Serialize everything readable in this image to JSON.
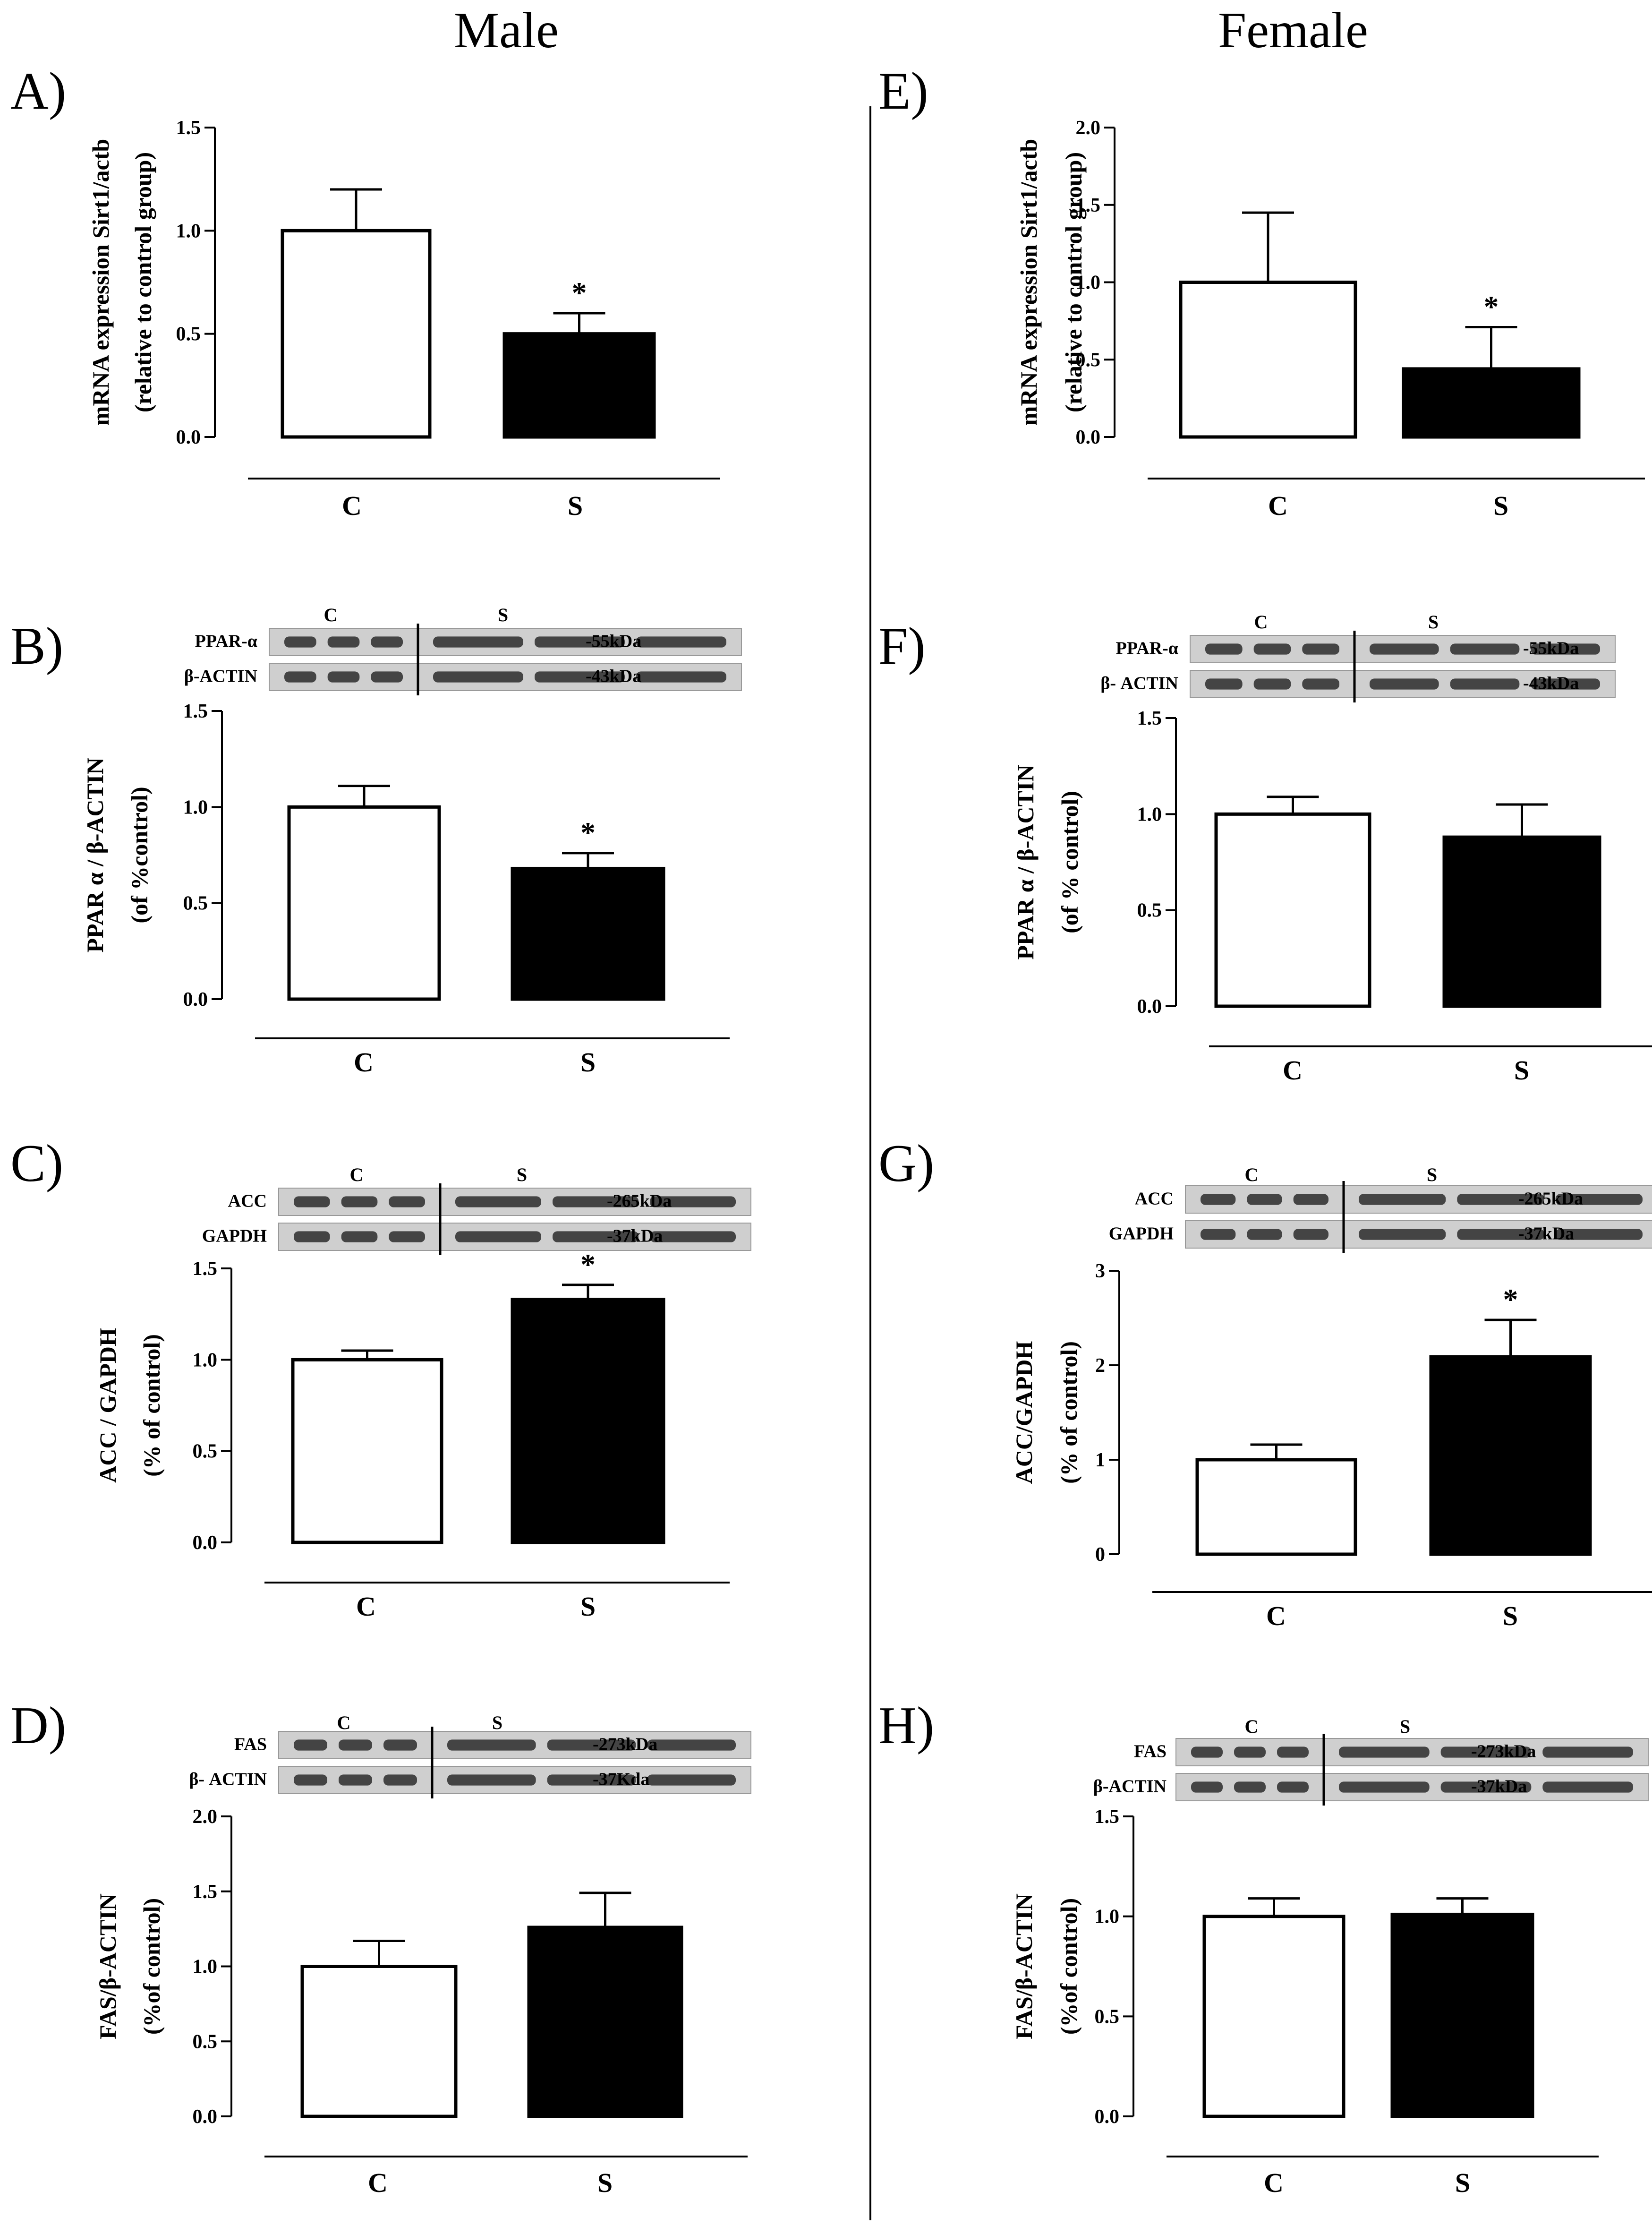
{
  "headings": {
    "male": "Male",
    "female": "Female"
  },
  "chart_data": [
    {
      "panel": "A)",
      "type": "bar",
      "column": "male",
      "categories": [
        "C",
        "S"
      ],
      "values": [
        1.0,
        0.5
      ],
      "errors": [
        0.2,
        0.1
      ],
      "significance": [
        "",
        "*"
      ],
      "ylabel": [
        "mRNA expression Sirt1/actb",
        "(relative to control group)"
      ],
      "ylim": [
        0,
        1.5
      ],
      "yticks": [
        "0.0",
        "0.5",
        "1.0",
        "1.5"
      ],
      "blot": null
    },
    {
      "panel": "B)",
      "type": "bar",
      "column": "male",
      "categories": [
        "C",
        "S"
      ],
      "values": [
        1.0,
        0.68
      ],
      "errors": [
        0.11,
        0.08
      ],
      "significance": [
        "",
        "*"
      ],
      "ylabel": [
        "PPAR α / β-ACTIN",
        "(of %control)"
      ],
      "ylim": [
        0,
        1.5
      ],
      "yticks": [
        "0.0",
        "0.5",
        "1.0",
        "1.5"
      ],
      "blot": {
        "groups": [
          "C",
          "S"
        ],
        "rows": [
          {
            "label": "PPAR-α",
            "kda": "-55kDa"
          },
          {
            "label": "β-ACTIN",
            "kda": "-43kDa"
          }
        ]
      }
    },
    {
      "panel": "C)",
      "type": "bar",
      "column": "male",
      "categories": [
        "C",
        "S"
      ],
      "values": [
        1.0,
        1.33
      ],
      "errors": [
        0.05,
        0.08
      ],
      "significance": [
        "",
        "*"
      ],
      "ylabel": [
        "ACC / GAPDH",
        "(% of control)"
      ],
      "ylim": [
        0,
        1.5
      ],
      "yticks": [
        "0.0",
        "0.5",
        "1.0",
        "1.5"
      ],
      "blot": {
        "groups": [
          "C",
          "S"
        ],
        "rows": [
          {
            "label": "ACC",
            "kda": "-265kDa"
          },
          {
            "label": "GAPDH",
            "kda": "-37kDa"
          }
        ]
      }
    },
    {
      "panel": "D)",
      "type": "bar",
      "column": "male",
      "categories": [
        "C",
        "S"
      ],
      "values": [
        1.0,
        1.26
      ],
      "errors": [
        0.17,
        0.23
      ],
      "significance": [
        "",
        ""
      ],
      "ylabel": [
        "FAS/β-ACTIN",
        "(%of control)"
      ],
      "ylim": [
        0,
        2.0
      ],
      "yticks": [
        "0.0",
        "0.5",
        "1.0",
        "1.5",
        "2.0"
      ],
      "blot": {
        "groups": [
          "C",
          "S"
        ],
        "rows": [
          {
            "label": "FAS",
            "kda": "-273kDa"
          },
          {
            "label": "β- ACTIN",
            "kda": "-37Kda"
          }
        ]
      }
    },
    {
      "panel": "E)",
      "type": "bar",
      "column": "female",
      "categories": [
        "C",
        "S"
      ],
      "values": [
        1.0,
        0.44
      ],
      "errors": [
        0.45,
        0.27
      ],
      "significance": [
        "",
        "*"
      ],
      "ylabel": [
        "mRNA expression Sirt1/actb",
        "(relative to control group)"
      ],
      "ylim": [
        0,
        2.0
      ],
      "yticks": [
        "0.0",
        "0.5",
        "1.0",
        "1.5",
        "2.0"
      ],
      "blot": null
    },
    {
      "panel": "F)",
      "type": "bar",
      "column": "female",
      "categories": [
        "C",
        "S"
      ],
      "values": [
        1.0,
        0.88
      ],
      "errors": [
        0.09,
        0.17
      ],
      "significance": [
        "",
        ""
      ],
      "ylabel": [
        "PPAR α / β-ACTIN",
        "(of % control)"
      ],
      "ylim": [
        0,
        1.5
      ],
      "yticks": [
        "0.0",
        "0.5",
        "1.0",
        "1.5"
      ],
      "blot": {
        "groups": [
          "C",
          "S"
        ],
        "rows": [
          {
            "label": "PPAR-α",
            "kda": "-55kDa"
          },
          {
            "label": "β- ACTIN",
            "kda": "-43kDa"
          }
        ]
      }
    },
    {
      "panel": "G)",
      "type": "bar",
      "column": "female",
      "categories": [
        "C",
        "S"
      ],
      "values": [
        1.0,
        2.09
      ],
      "errors": [
        0.16,
        0.39
      ],
      "significance": [
        "",
        "*"
      ],
      "ylabel": [
        "ACC/GAPDH",
        "(% of control)"
      ],
      "ylim": [
        0,
        3
      ],
      "yticks": [
        "0",
        "1",
        "2",
        "3"
      ],
      "blot": {
        "groups": [
          "C",
          "S"
        ],
        "rows": [
          {
            "label": "ACC",
            "kda": "-265kDa"
          },
          {
            "label": "GAPDH",
            "kda": "-37kDa"
          }
        ]
      }
    },
    {
      "panel": "H)",
      "type": "bar",
      "column": "female",
      "categories": [
        "C",
        "S"
      ],
      "values": [
        1.0,
        1.01
      ],
      "errors": [
        0.09,
        0.08
      ],
      "significance": [
        "",
        ""
      ],
      "ylabel": [
        "FAS/β-ACTIN",
        "(%of control)"
      ],
      "ylim": [
        0,
        1.5
      ],
      "yticks": [
        "0.0",
        "0.5",
        "1.0",
        "1.5"
      ],
      "blot": {
        "groups": [
          "C",
          "S"
        ],
        "rows": [
          {
            "label": "FAS",
            "kda": "-273kDa"
          },
          {
            "label": "β-ACTIN",
            "kda": "-37kDa"
          }
        ]
      }
    }
  ]
}
